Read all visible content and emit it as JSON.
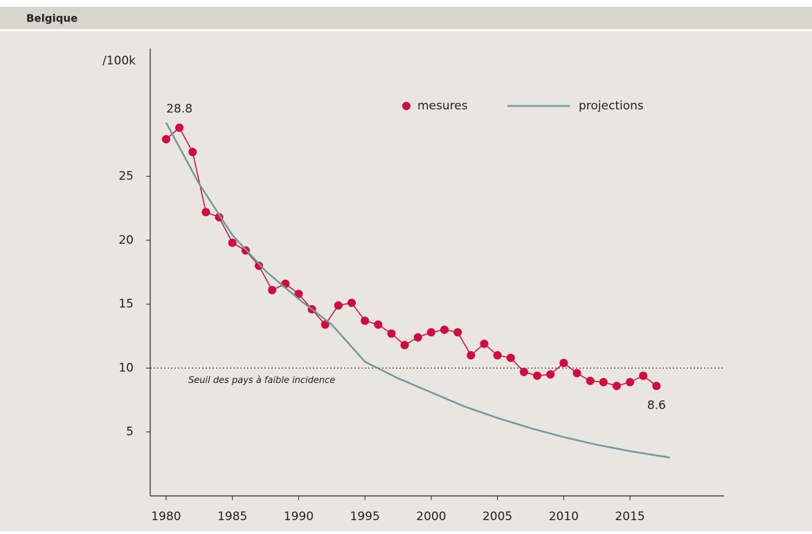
{
  "chart_data": {
    "type": "line",
    "title": "Belgique",
    "y_label": "/100k",
    "xlim": [
      1978.8,
      2022.1
    ],
    "ylim": [
      0,
      35
    ],
    "xticks": [
      1980,
      1985,
      1990,
      1995,
      2000,
      2005,
      2010,
      2015
    ],
    "yticks": [
      5,
      10,
      15,
      20,
      25
    ],
    "threshold": {
      "value": 10,
      "label": "Seuil des pays à faible incidence"
    },
    "series": [
      {
        "name": "mesures",
        "color": "#d4093c",
        "markers": true,
        "x": [
          1980,
          1981,
          1982,
          1983,
          1984,
          1985,
          1986,
          1987,
          1988,
          1989,
          1990,
          1991,
          1992,
          1993,
          1994,
          1995,
          1996,
          1997,
          1998,
          1999,
          2000,
          2001,
          2002,
          2003,
          2004,
          2005,
          2006,
          2007,
          2008,
          2009,
          2010,
          2011,
          2012,
          2013,
          2014,
          2015,
          2016,
          2017
        ],
        "values": [
          27.9,
          28.8,
          26.9,
          22.2,
          21.8,
          19.8,
          19.2,
          18.0,
          16.1,
          16.6,
          15.8,
          14.6,
          13.4,
          14.9,
          15.1,
          13.7,
          13.4,
          12.7,
          11.8,
          12.4,
          12.8,
          13.0,
          12.8,
          11.0,
          11.9,
          11.0,
          10.8,
          9.7,
          9.4,
          9.5,
          10.4,
          9.6,
          9.0,
          8.9,
          8.6,
          8.9,
          9.4,
          8.6
        ]
      },
      {
        "name": "projections",
        "color": "#6f9a9c",
        "markers": false,
        "x": [
          1980,
          1982.5,
          1985,
          1987.5,
          1990,
          1992.5,
          1995,
          1997.5,
          2000,
          2002.5,
          2005,
          2007.5,
          2010,
          2012.5,
          2015,
          2018
        ],
        "values": [
          29.2,
          24.4,
          20.4,
          17.6,
          15.4,
          13.4,
          10.5,
          9.2,
          8.1,
          7.0,
          6.1,
          5.3,
          4.6,
          4.0,
          3.5,
          3.0
        ]
      }
    ]
  }
}
